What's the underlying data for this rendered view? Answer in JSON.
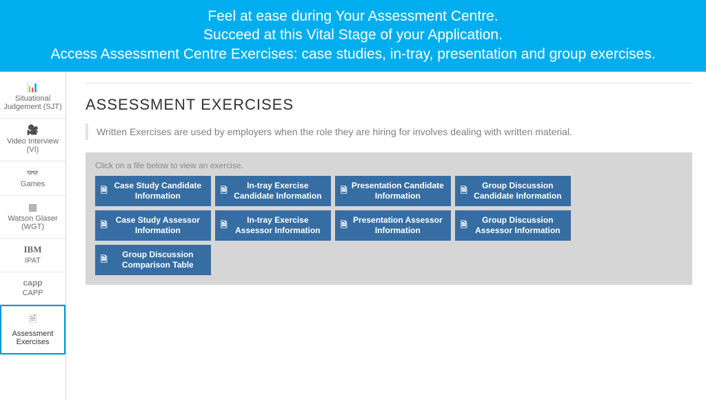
{
  "banner": {
    "line1": "Feel at ease during Your Assessment Centre.",
    "line2": "Succeed at this Vital Stage of your Application.",
    "line3": "Access Assessment Centre Exercises: case studies, in-tray, presentation and group exercises.",
    "bg_color": "#00aeef",
    "text_color": "#ffffff"
  },
  "sidebar": {
    "items": [
      {
        "icon": "📊",
        "label": "Situational Judgement (SJT)",
        "active": false
      },
      {
        "icon": "🎥",
        "label": "Video Interview (VI)",
        "active": false
      },
      {
        "icon": "👓",
        "label": "Games",
        "active": false
      },
      {
        "icon": "▦",
        "label": "Watson Glaser (WGT)",
        "active": false
      },
      {
        "icon": "IBM",
        "label": "IPAT",
        "active": false,
        "logo_style": true
      },
      {
        "icon": "capp",
        "label": "CAPP",
        "active": false,
        "capp_style": true
      },
      {
        "icon": "🗎",
        "label": "Assessment Exercises",
        "active": true
      }
    ]
  },
  "main": {
    "title": "ASSESSMENT EXERCISES",
    "intro": "Written Exercises are used by employers when the role they are hiring for involves dealing with written material.",
    "panel_hint": "Click on a file below to view an exercise.",
    "tile_bg": "#366ea3",
    "panel_bg": "#d6d6d6",
    "tiles": [
      {
        "label": "Case Study Candidate Information"
      },
      {
        "label": "In-tray Exercise Candidate Information"
      },
      {
        "label": "Presentation Candidate Information"
      },
      {
        "label": "Group Discussion Candidate Information"
      },
      {
        "label": "Case Study Assessor Information"
      },
      {
        "label": "In-tray Exercise Assessor Information"
      },
      {
        "label": "Presentation Assessor Information"
      },
      {
        "label": "Group Discussion Assessor Information"
      },
      {
        "label": "Group Discussion Comparison Table"
      }
    ]
  }
}
